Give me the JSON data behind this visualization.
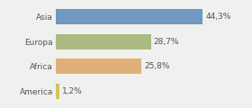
{
  "categories": [
    "Asia",
    "Europa",
    "Africa",
    "America"
  ],
  "values": [
    44.3,
    28.7,
    25.8,
    1.2
  ],
  "labels": [
    "44,3%",
    "28,7%",
    "25,8%",
    "1,2%"
  ],
  "bar_colors": [
    "#7098c0",
    "#aaba82",
    "#e0b07a",
    "#d4c45a"
  ],
  "background_color": "#f0f0ee",
  "xlim": [
    0,
    50
  ],
  "bar_height": 0.62,
  "label_fontsize": 6.5,
  "tick_fontsize": 6.5
}
